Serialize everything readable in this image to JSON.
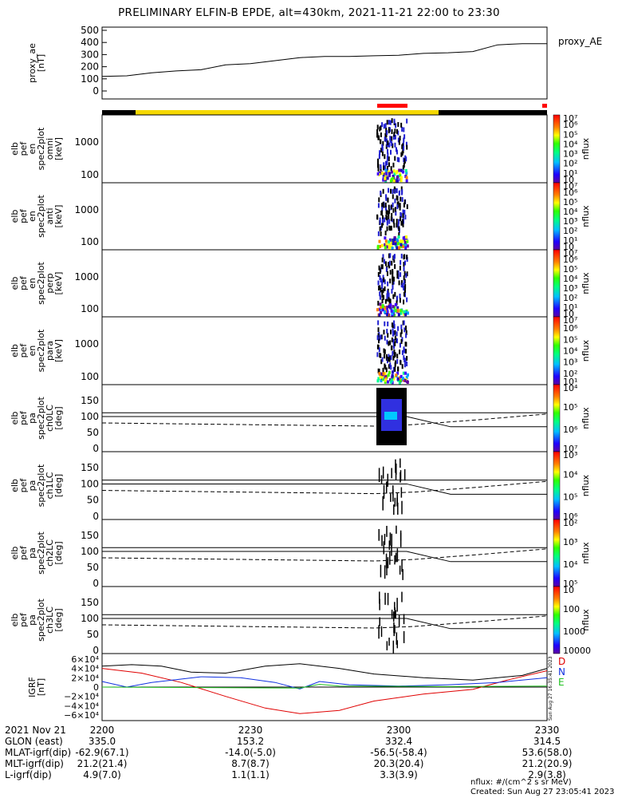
{
  "title": "PRELIMINARY ELFIN-B EPDE, alt=430km, 2021-11-21 22:00 to 23:30",
  "ae_panel": {
    "ylabel": [
      "proxy_ae",
      "[nT]"
    ],
    "legend": "proxy_AE",
    "yticks": [
      "500",
      "400",
      "300",
      "200",
      "100",
      "0"
    ]
  },
  "spec_panels": [
    {
      "ylabel": [
        "elb",
        "pef",
        "en",
        "spec2plot",
        "omni",
        "[keV]"
      ],
      "yticks": [
        "1000",
        "100"
      ],
      "cbar_label": "nflux",
      "cbar_ticks": [
        "10",
        "10¹",
        "10²",
        "10³",
        "10⁴",
        "10⁵",
        "10⁶",
        "10⁷"
      ]
    },
    {
      "ylabel": [
        "elb",
        "pef",
        "en",
        "spec2plot",
        "anti",
        "[keV]"
      ],
      "yticks": [
        "1000",
        "100"
      ],
      "cbar_label": "nflux",
      "cbar_ticks": [
        "10",
        "10¹",
        "10²",
        "10³",
        "10⁴",
        "10⁵",
        "10⁶",
        "10⁷"
      ]
    },
    {
      "ylabel": [
        "elb",
        "pef",
        "en",
        "spec2plot",
        "perp",
        "[keV]"
      ],
      "yticks": [
        "1000",
        "100"
      ],
      "cbar_label": "nflux",
      "cbar_ticks": [
        "10",
        "10¹",
        "10²",
        "10³",
        "10⁴",
        "10⁵",
        "10⁶",
        "10⁷"
      ]
    },
    {
      "ylabel": [
        "elb",
        "pef",
        "en",
        "spec2plot",
        "para",
        "[keV]"
      ],
      "yticks": [
        "1000",
        "100"
      ],
      "cbar_label": "nflux",
      "cbar_ticks": [
        "10¹",
        "10²",
        "10³",
        "10⁴",
        "10⁵",
        "10⁶",
        "10⁷"
      ]
    }
  ],
  "pa_panels": [
    {
      "ylabel": [
        "elb",
        "pef",
        "pa",
        "spec2plot",
        "ch0LC",
        "[deg]"
      ],
      "yticks": [
        "150",
        "100",
        "50",
        "0"
      ],
      "cbar_label": "nflux",
      "cbar_ticks": [
        "10⁷",
        "10⁶",
        "10⁵",
        "10⁴"
      ]
    },
    {
      "ylabel": [
        "elb",
        "pef",
        "pa",
        "spec2plot",
        "ch1LC",
        "[deg]"
      ],
      "yticks": [
        "150",
        "100",
        "50",
        "0"
      ],
      "cbar_label": "nflux",
      "cbar_ticks": [
        "10⁶",
        "10⁵",
        "10⁴",
        "10³"
      ]
    },
    {
      "ylabel": [
        "elb",
        "pef",
        "pa",
        "spec2plot",
        "ch2LC",
        "[deg]"
      ],
      "yticks": [
        "150",
        "100",
        "50",
        "0"
      ],
      "cbar_label": "nflux",
      "cbar_ticks": [
        "10⁵",
        "10⁴",
        "10³",
        "10²"
      ]
    },
    {
      "ylabel": [
        "elb",
        "pef",
        "pa",
        "spec2plot",
        "ch3LC",
        "[deg]"
      ],
      "yticks": [
        "150",
        "100",
        "50",
        "0"
      ],
      "cbar_label": "nflux",
      "cbar_ticks": [
        "10000",
        "1000",
        "100",
        "10"
      ]
    }
  ],
  "igrf_panel": {
    "ylabel": [
      "IGRF",
      "[nT]"
    ],
    "yticks": [
      "6×10⁴",
      "4×10⁴",
      "2×10⁴",
      "0",
      "−2×10⁴",
      "−4×10⁴",
      "−6×10⁴"
    ],
    "legend": [
      {
        "name": "D",
        "color": "#e00000"
      },
      {
        "name": "N",
        "color": "#1030e0"
      },
      {
        "name": "E",
        "color": "#20c020"
      }
    ],
    "side_stamp": "Sun Aug 27 16:35:41 2023"
  },
  "footer": {
    "rows": [
      {
        "label": "2021 Nov 21",
        "vals": [
          "2200",
          "2230",
          "2300",
          "2330"
        ]
      },
      {
        "label": "GLON (east)",
        "vals": [
          "335.0",
          "153.2",
          "332.4",
          "314.5"
        ]
      },
      {
        "label": "MLAT-igrf(dip)",
        "vals": [
          "-62.9(67.1)",
          "-14.0(-5.0)",
          "-56.5(-58.4)",
          "53.6(58.0)"
        ]
      },
      {
        "label": "MLT-igrf(dip)",
        "vals": [
          "21.2(21.4)",
          "8.7(8.7)",
          "20.3(20.4)",
          "21.2(20.9)"
        ]
      },
      {
        "label": "L-igrf(dip)",
        "vals": [
          "4.9(7.0)",
          "1.1(1.1)",
          "3.3(3.9)",
          "2.9(3.8)"
        ]
      }
    ],
    "units_note": "nflux: #/(cm^2 s sr MeV)",
    "created": "Created: Sun Aug 27 23:05:41 2023"
  },
  "colors": {
    "yellow_bar": "#f5d800",
    "red_bar": "#ff0000",
    "black_bar": "#000000"
  },
  "chart_data": {
    "type": "line",
    "x_time_minutes_labels": [
      "2200",
      "2230",
      "2300",
      "2330"
    ],
    "series": [
      {
        "name": "proxy_AE",
        "x": [
          0,
          5,
          10,
          15,
          20,
          25,
          30,
          35,
          40,
          45,
          50,
          55,
          60,
          65,
          70,
          75,
          80,
          85,
          90
        ],
        "y": [
          120,
          125,
          150,
          165,
          175,
          215,
          225,
          250,
          275,
          285,
          285,
          290,
          295,
          310,
          315,
          325,
          380,
          390,
          390
        ]
      }
    ],
    "ylim": [
      0,
      500
    ]
  }
}
